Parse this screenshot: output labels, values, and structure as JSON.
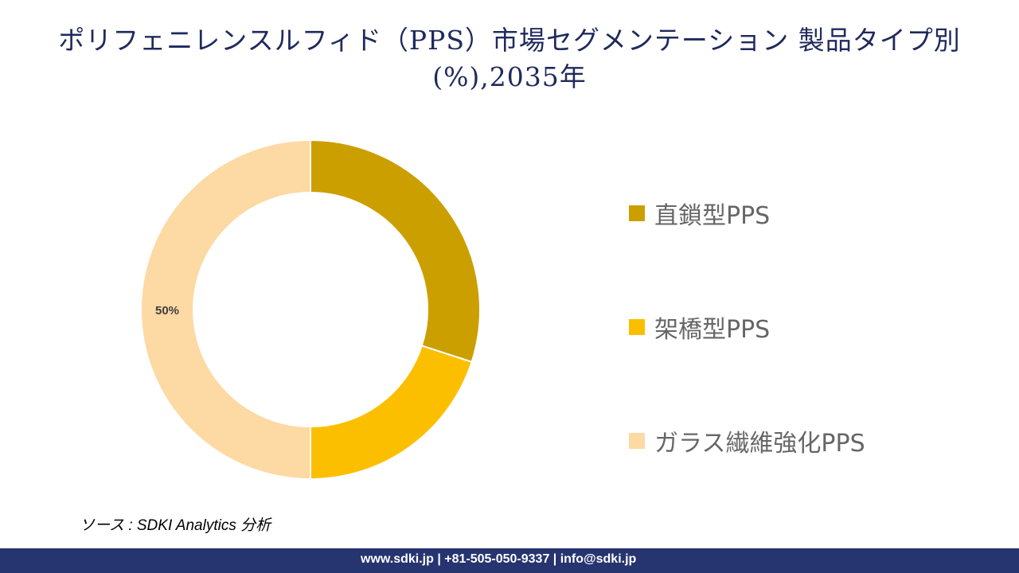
{
  "title": "ポリフェニレンスルフィド（PPS）市場セグメンテーション 製品タイプ別(%),2035年",
  "chart_data": {
    "type": "pie",
    "donut": true,
    "categories": [
      "直鎖型PPS",
      "架橋型PPS",
      "ガラス繊維強化PPS"
    ],
    "values": [
      30,
      20,
      50
    ],
    "colors": [
      "#cc9f00",
      "#fcbf00",
      "#fdd9a3"
    ],
    "data_labels": [
      "",
      "",
      "50%"
    ],
    "legend_position": "right"
  },
  "source": "ソース : SDKI Analytics 分析",
  "footer": "www.sdki.jp | +81-505-050-9337 | info@sdki.jp"
}
